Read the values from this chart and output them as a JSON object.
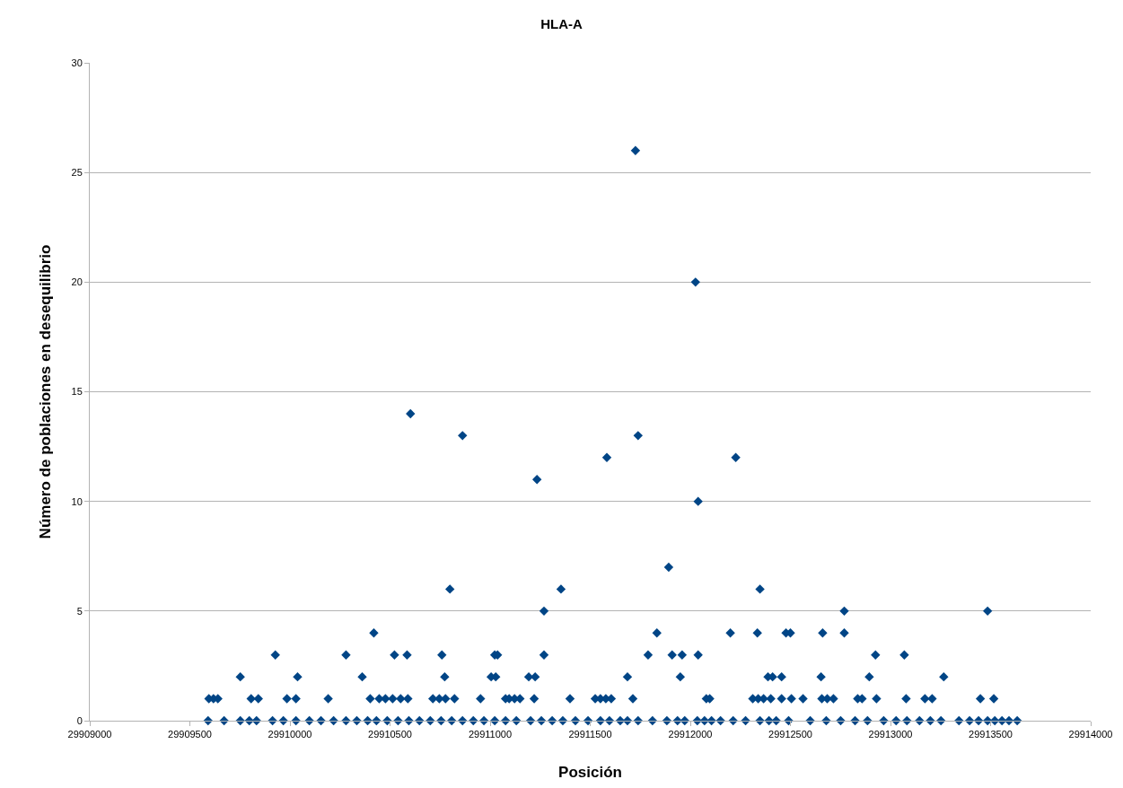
{
  "chart_data": {
    "type": "scatter",
    "title": "HLA-A",
    "xlabel": "Posición",
    "ylabel": "Número de poblaciones en desequilibrio",
    "x": [
      29909591,
      29909671,
      29909752,
      29909797,
      29909833,
      29909913,
      29909967,
      29910030,
      29910097,
      29910155,
      29910218,
      29910280,
      29910334,
      29910388,
      29910432,
      29910486,
      29910540,
      29910594,
      29910647,
      29910701,
      29910755,
      29910808,
      29910862,
      29910916,
      29910969,
      29911023,
      29911077,
      29911131,
      29911202,
      29911256,
      29911310,
      29911363,
      29911426,
      29911489,
      29911551,
      29911596,
      29911650,
      29911686,
      29911739,
      29911811,
      29911883,
      29911936,
      29911972,
      29912035,
      29912071,
      29912106,
      29912151,
      29912214,
      29912276,
      29912348,
      29912393,
      29912429,
      29912491,
      29912599,
      29912679,
      29912751,
      29912823,
      29912885,
      29912966,
      29913028,
      29913082,
      29913145,
      29913199,
      29913252,
      29913342,
      29913395,
      29913440,
      29913485,
      29913521,
      29913557,
      29913592,
      29913633,
      29909595,
      29909618,
      29909640,
      29909806,
      29909842,
      29909985,
      29910030,
      29910191,
      29910401,
      29910446,
      29910477,
      29910513,
      29910553,
      29910589,
      29910714,
      29910746,
      29910777,
      29910822,
      29910952,
      29911077,
      29911095,
      29911122,
      29911149,
      29911220,
      29911399,
      29911525,
      29911551,
      29911578,
      29911605,
      29911713,
      29912080,
      29912097,
      29912312,
      29912339,
      29912366,
      29912402,
      29912456,
      29912505,
      29912563,
      29912657,
      29912684,
      29912715,
      29912836,
      29912858,
      29912930,
      29913078,
      29913172,
      29913208,
      29913449,
      29913516,
      29909752,
      29910038,
      29910361,
      29910773,
      29911005,
      29911028,
      29911193,
      29911225,
      29911686,
      29911950,
      29912388,
      29912411,
      29912456,
      29912653,
      29912894,
      29913266,
      29909927,
      29910280,
      29910522,
      29910585,
      29910759,
      29911023,
      29911037,
      29911269,
      29911789,
      29911909,
      29911959,
      29912039,
      29912925,
      29913069,
      29910419,
      29911833,
      29912200,
      29912335,
      29912478,
      29912500,
      29912661,
      29912769,
      29911269,
      29912769,
      29913485,
      29910799,
      29911354,
      29912348,
      29911892,
      29912039,
      29911234,
      29911583,
      29912227,
      29910862,
      29911739,
      29910602,
      29912026,
      29911726
    ],
    "series": [
      {
        "color": "#004586",
        "values": [
          0,
          0,
          0,
          0,
          0,
          0,
          0,
          0,
          0,
          0,
          0,
          0,
          0,
          0,
          0,
          0,
          0,
          0,
          0,
          0,
          0,
          0,
          0,
          0,
          0,
          0,
          0,
          0,
          0,
          0,
          0,
          0,
          0,
          0,
          0,
          0,
          0,
          0,
          0,
          0,
          0,
          0,
          0,
          0,
          0,
          0,
          0,
          0,
          0,
          0,
          0,
          0,
          0,
          0,
          0,
          0,
          0,
          0,
          0,
          0,
          0,
          0,
          0,
          0,
          0,
          0,
          0,
          0,
          0,
          0,
          0,
          0,
          1,
          1,
          1,
          1,
          1,
          1,
          1,
          1,
          1,
          1,
          1,
          1,
          1,
          1,
          1,
          1,
          1,
          1,
          1,
          1,
          1,
          1,
          1,
          1,
          1,
          1,
          1,
          1,
          1,
          1,
          1,
          1,
          1,
          1,
          1,
          1,
          1,
          1,
          1,
          1,
          1,
          1,
          1,
          1,
          1,
          1,
          1,
          1,
          1,
          1,
          2,
          2,
          2,
          2,
          2,
          2,
          2,
          2,
          2,
          2,
          2,
          2,
          2,
          2,
          2,
          2,
          3,
          3,
          3,
          3,
          3,
          3,
          3,
          3,
          3,
          3,
          3,
          3,
          3,
          3,
          4,
          4,
          4,
          4,
          4,
          4,
          4,
          4,
          5,
          5,
          5,
          6,
          6,
          6,
          7,
          10,
          11,
          12,
          12,
          13,
          13,
          14,
          20,
          26
        ]
      }
    ],
    "xlim": [
      29909000,
      29914000
    ],
    "xticks": [
      29909000,
      29909500,
      29910000,
      29910500,
      29911000,
      29911500,
      29912000,
      29912500,
      29913000,
      29913500,
      29914000
    ],
    "ylim": [
      0,
      30
    ],
    "yticks": [
      0,
      5,
      10,
      15,
      20,
      25,
      30
    ],
    "grid": "y",
    "marker": "diamond"
  }
}
